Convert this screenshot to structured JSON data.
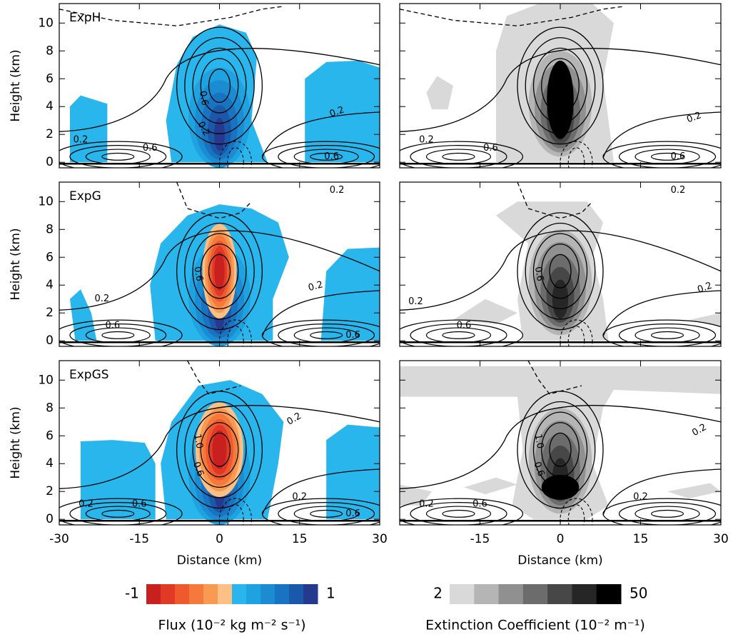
{
  "chart_data": [
    {
      "type": "contour",
      "title": "ExpH",
      "ylabel": "Height (km)",
      "xlim": [
        -30,
        30
      ],
      "ylim": [
        -0.4,
        11.4
      ],
      "xticks": [
        -30,
        -15,
        0,
        15,
        30
      ],
      "yticks": [
        0,
        2,
        4,
        6,
        8,
        10
      ],
      "contour_labels": [
        "0.6",
        "0.2",
        "0.2",
        "0.6",
        "0.2",
        "0.6"
      ]
    },
    {
      "type": "contour",
      "xlim": [
        -30,
        30
      ],
      "ylim": [
        -0.4,
        11.4
      ],
      "xticks": [
        -15,
        0,
        15,
        30
      ],
      "yticks": [
        0,
        2,
        4,
        6,
        8,
        10
      ],
      "contour_labels": [
        "0.2",
        "0.6",
        "0.2",
        "0.6"
      ]
    },
    {
      "type": "contour",
      "title": "ExpG",
      "ylabel": "Height (km)",
      "xlim": [
        -30,
        30
      ],
      "ylim": [
        -0.4,
        11.4
      ],
      "xticks": [
        -30,
        -15,
        0,
        15,
        30
      ],
      "yticks": [
        0,
        2,
        4,
        6,
        8,
        10
      ],
      "contour_labels": [
        "0.6",
        "0.2",
        "0.6",
        "0.2",
        "0.2",
        "0.6"
      ]
    },
    {
      "type": "contour",
      "xlim": [
        -30,
        30
      ],
      "ylim": [
        -0.4,
        11.4
      ],
      "xticks": [
        -15,
        0,
        15,
        30
      ],
      "yticks": [
        0,
        2,
        4,
        6,
        8,
        10
      ],
      "contour_labels": [
        "0.6",
        "0.2",
        "0.6",
        "0.2",
        "0.2"
      ]
    },
    {
      "type": "contour",
      "title": "ExpGS",
      "ylabel": "Height (km)",
      "xlabel": "Distance (km)",
      "xlim": [
        -30,
        30
      ],
      "ylim": [
        -0.4,
        11.4
      ],
      "xticks": [
        -30,
        -15,
        0,
        15,
        30
      ],
      "yticks": [
        0,
        2,
        4,
        6,
        8,
        10
      ],
      "contour_labels": [
        "1.0",
        "0.6",
        "0.2",
        "0.2",
        "0.6",
        "0.2",
        "0.6"
      ]
    },
    {
      "type": "contour",
      "xlabel": "Distance (km)",
      "xlim": [
        -30,
        30
      ],
      "ylim": [
        -0.4,
        11.4
      ],
      "xticks": [
        -15,
        0,
        15,
        30
      ],
      "yticks": [
        0,
        2,
        4,
        6,
        8,
        10
      ],
      "contour_labels": [
        "1.0",
        "0.6",
        "0.2",
        "0.2",
        "0.6",
        "0.2"
      ]
    }
  ],
  "colorbars": [
    {
      "low": -1,
      "high": 1,
      "title": "Flux (10⁻² kg m⁻² s⁻¹)",
      "colors": [
        "#c8201f",
        "#e03a27",
        "#ee5a2e",
        "#f5793a",
        "#f99a52",
        "#fcbf86",
        "#29b6ec",
        "#1fa2e0",
        "#1b8bd2",
        "#1873c1",
        "#1a59aa",
        "#253a8e"
      ]
    },
    {
      "low": 2,
      "high": 50,
      "title": "Extinction Coefficient (10⁻² m⁻¹)",
      "colors": [
        "#d9d9d9",
        "#b5b5b5",
        "#909090",
        "#6c6c6c",
        "#474747",
        "#262626",
        "#000000"
      ]
    }
  ]
}
